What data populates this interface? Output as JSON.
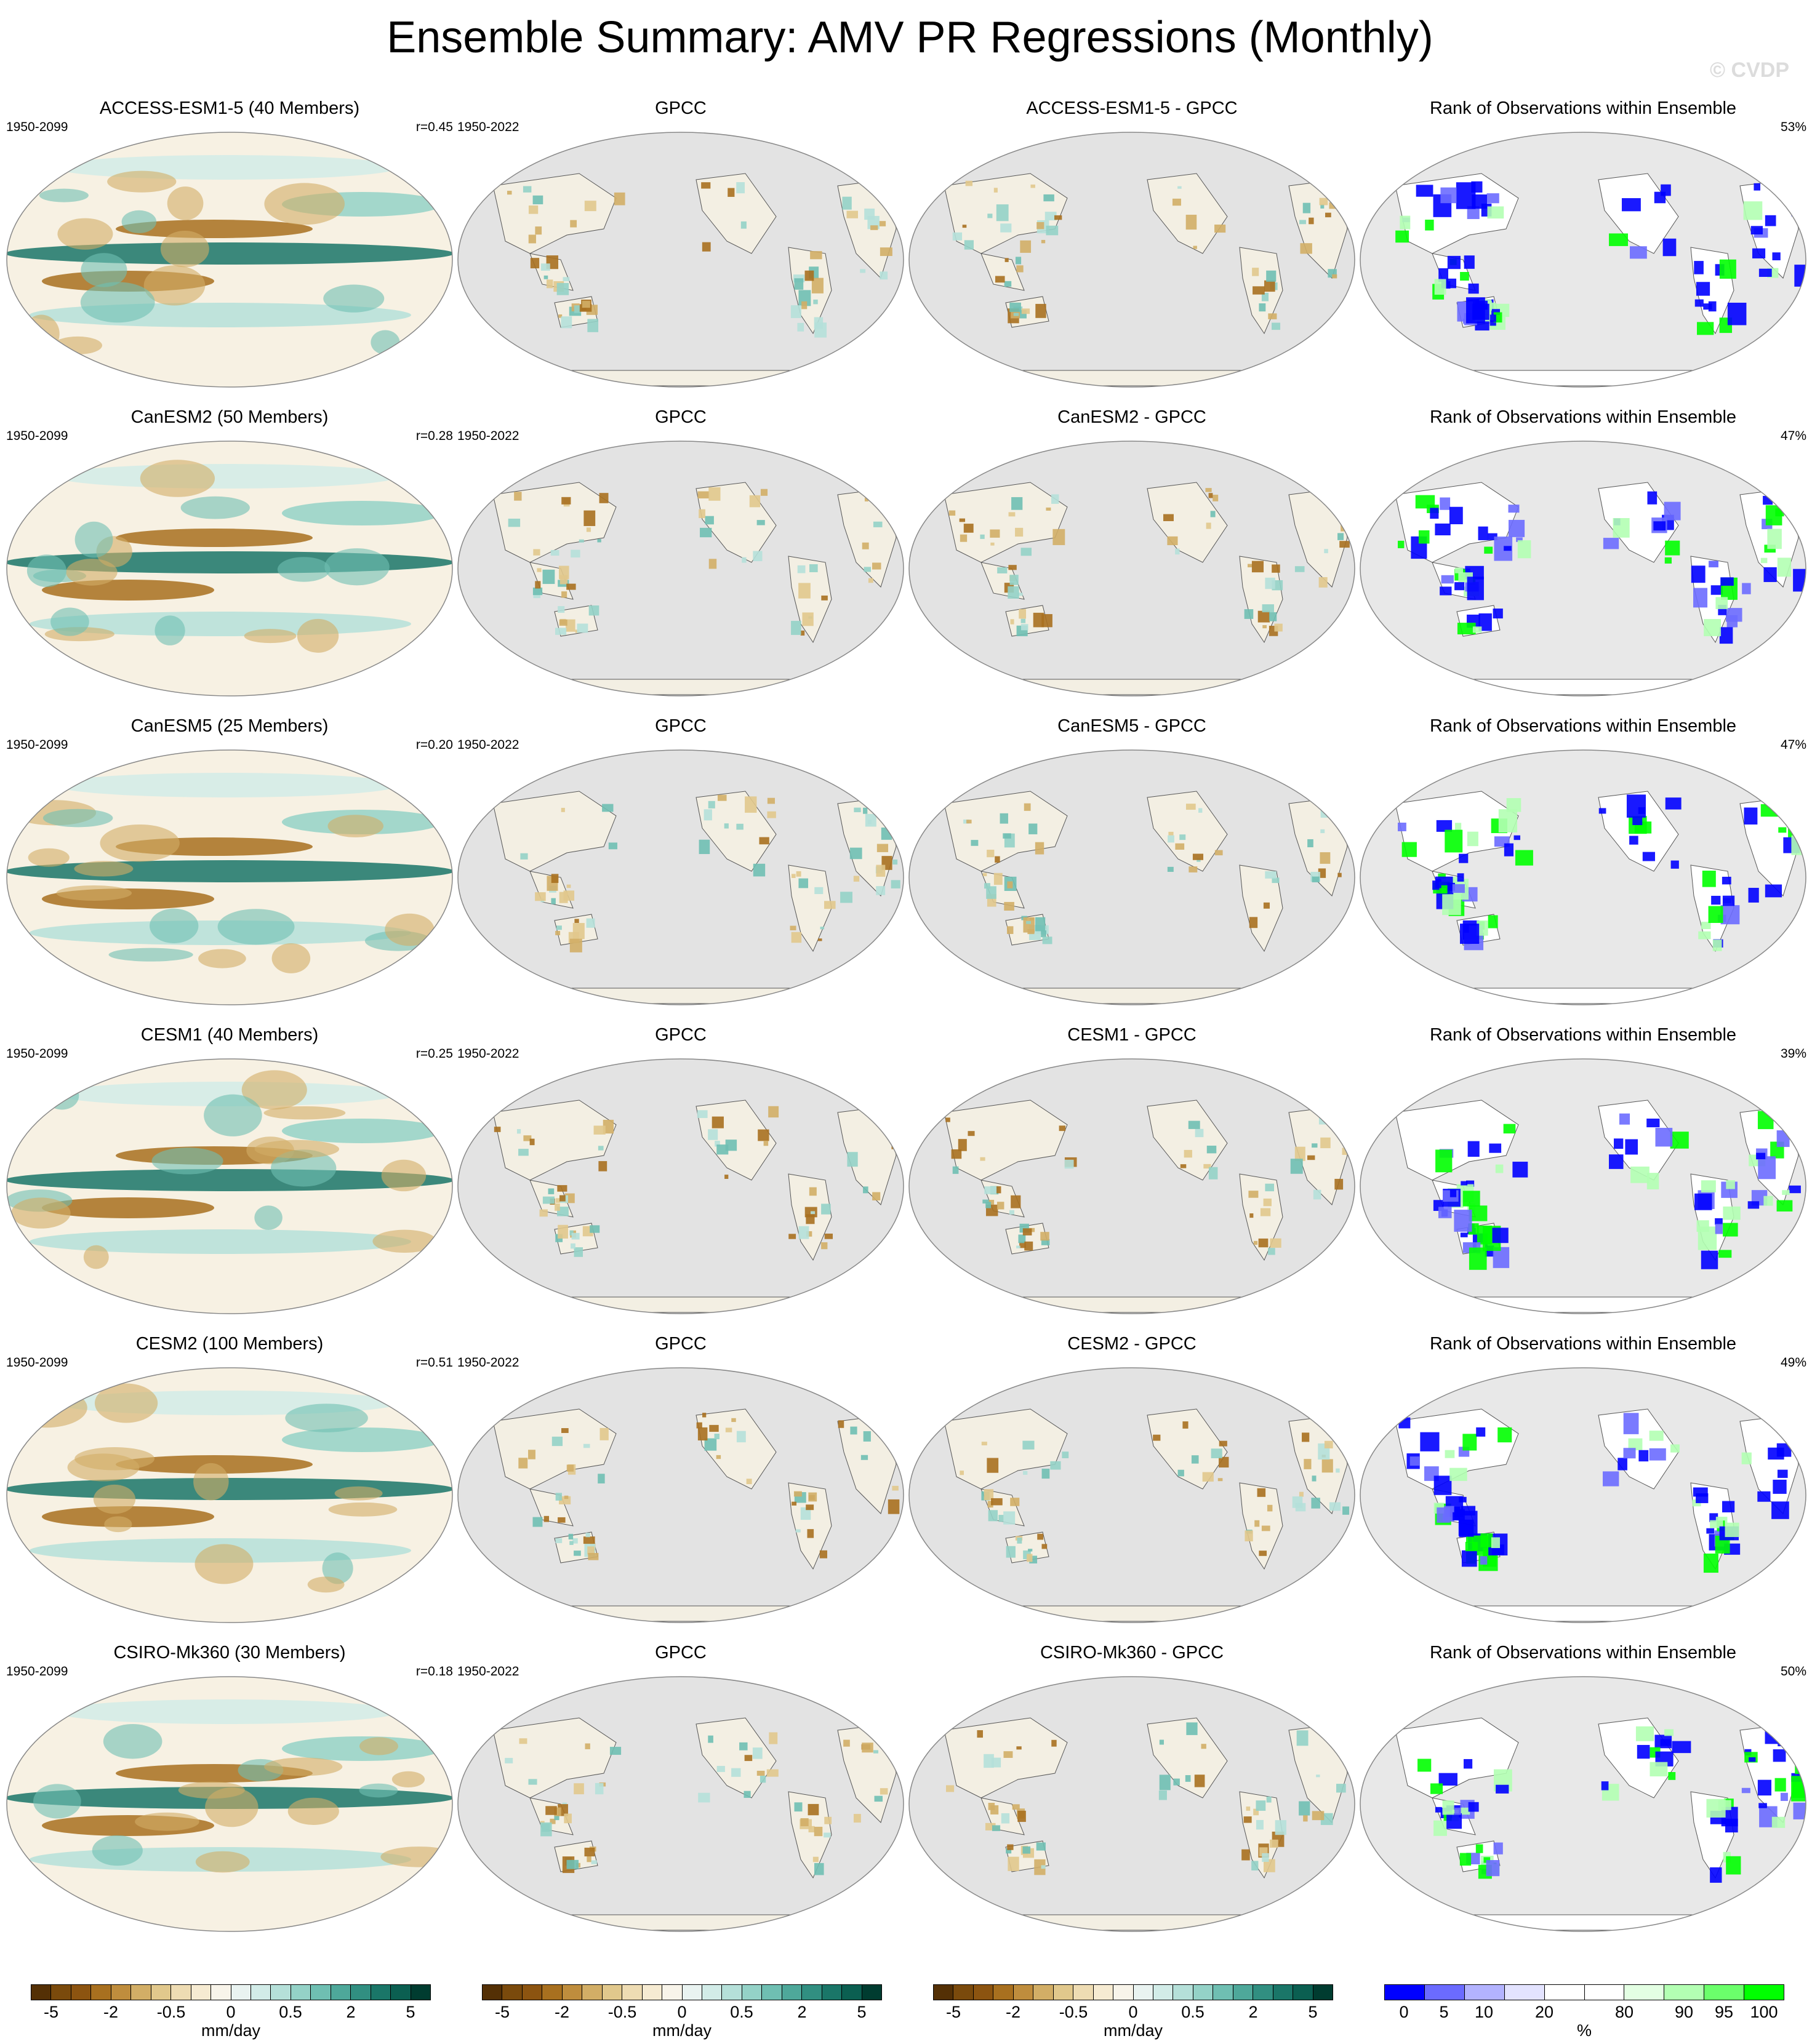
{
  "header": {
    "title": "Ensemble Summary: AMV PR Regressions (Monthly)",
    "watermark": "© CVDP"
  },
  "rows": [
    {
      "model": {
        "title": "ACCESS-ESM1-5 (40 Members)",
        "years": "1950-2099",
        "r": "r=0.45"
      },
      "obs": {
        "title": "GPCC",
        "years": "1950-2022"
      },
      "diff": {
        "title": "ACCESS-ESM1-5 - GPCC"
      },
      "rank": {
        "title": "Rank of Observations within Ensemble",
        "pct": "53%"
      }
    },
    {
      "model": {
        "title": "CanESM2 (50 Members)",
        "years": "1950-2099",
        "r": "r=0.28"
      },
      "obs": {
        "title": "GPCC",
        "years": "1950-2022"
      },
      "diff": {
        "title": "CanESM2 - GPCC"
      },
      "rank": {
        "title": "Rank of Observations within Ensemble",
        "pct": "47%"
      }
    },
    {
      "model": {
        "title": "CanESM5 (25 Members)",
        "years": "1950-2099",
        "r": "r=0.20"
      },
      "obs": {
        "title": "GPCC",
        "years": "1950-2022"
      },
      "diff": {
        "title": "CanESM5 - GPCC"
      },
      "rank": {
        "title": "Rank of Observations within Ensemble",
        "pct": "47%"
      }
    },
    {
      "model": {
        "title": "CESM1 (40 Members)",
        "years": "1950-2099",
        "r": "r=0.25"
      },
      "obs": {
        "title": "GPCC",
        "years": "1950-2022"
      },
      "diff": {
        "title": "CESM1 - GPCC"
      },
      "rank": {
        "title": "Rank of Observations within Ensemble",
        "pct": "39%"
      }
    },
    {
      "model": {
        "title": "CESM2 (100 Members)",
        "years": "1950-2099",
        "r": "r=0.51"
      },
      "obs": {
        "title": "GPCC",
        "years": "1950-2022"
      },
      "diff": {
        "title": "CESM2 - GPCC"
      },
      "rank": {
        "title": "Rank of Observations within Ensemble",
        "pct": "49%"
      }
    },
    {
      "model": {
        "title": "CSIRO-Mk360 (30 Members)",
        "years": "1950-2099",
        "r": "r=0.18"
      },
      "obs": {
        "title": "GPCC",
        "years": "1950-2022"
      },
      "diff": {
        "title": "CSIRO-Mk360 - GPCC"
      },
      "rank": {
        "title": "Rank of Observations within Ensemble",
        "pct": "50%"
      }
    }
  ],
  "colorbars": {
    "precip": {
      "colors": [
        "#543005",
        "#7a4a0c",
        "#8c5410",
        "#a8701f",
        "#bf8d3d",
        "#d2ae66",
        "#e1c88c",
        "#eedcb3",
        "#f6ebd2",
        "#f8f4ea",
        "#e9f3f1",
        "#d2ece8",
        "#b5e0d9",
        "#94d2c7",
        "#6fbfb2",
        "#4ea89a",
        "#318f81",
        "#1a7668",
        "#0b5f51",
        "#003c30"
      ],
      "ticks": [
        "-5",
        "-2",
        "-0.5",
        "0",
        "0.5",
        "2",
        "5"
      ],
      "unit": "mm/day"
    },
    "rank": {
      "colors": [
        "#0000ff",
        "#6b6bff",
        "#b3b3ff",
        "#e3e3ff",
        "#ffffff",
        "#ffffff",
        "#e3ffe3",
        "#b3ffb3",
        "#6bff6b",
        "#00ff00"
      ],
      "ticks": [
        "0",
        "5",
        "10",
        "20",
        "80",
        "90",
        "95",
        "100"
      ],
      "unit": "%"
    }
  }
}
